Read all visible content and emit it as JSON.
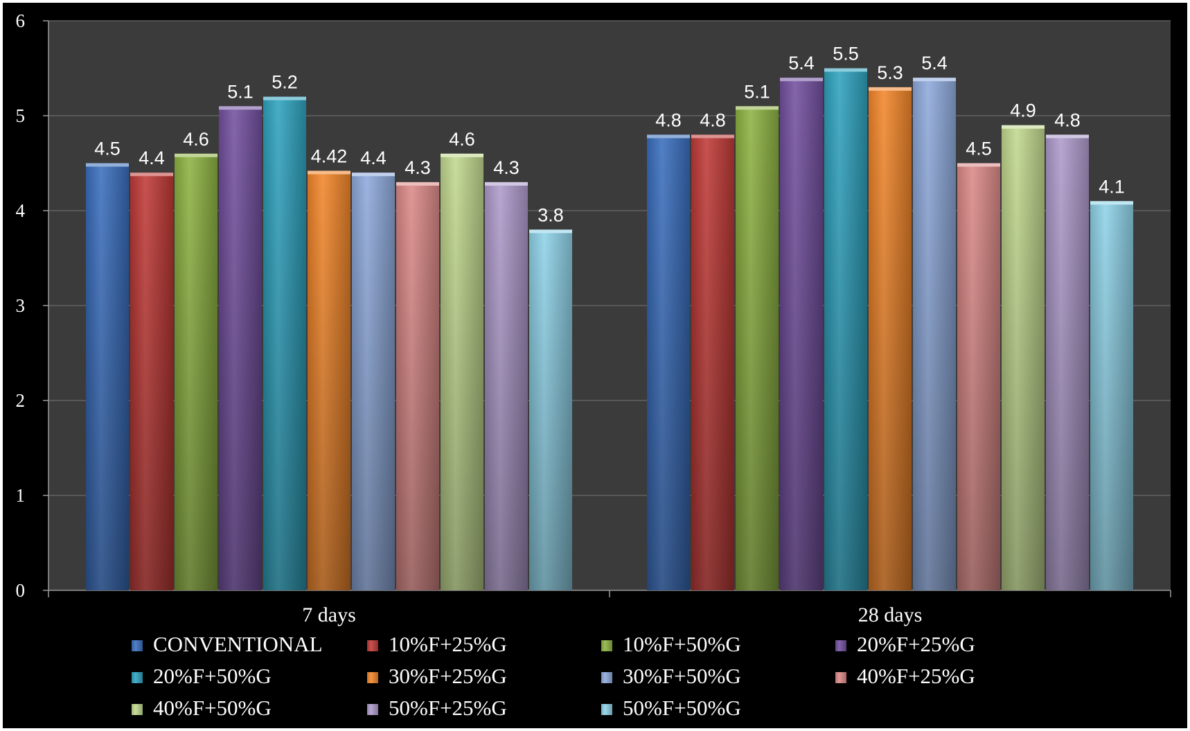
{
  "chart_data": {
    "type": "bar",
    "categories": [
      "7 days",
      "28 days"
    ],
    "ylim": [
      0,
      6
    ],
    "yticks": [
      0,
      1,
      2,
      3,
      4,
      5,
      6
    ],
    "grid": true,
    "legend_position": "bottom",
    "background": "#3b3b3b",
    "series": [
      {
        "name": "CONVENTIONAL",
        "values": [
          4.5,
          4.8
        ],
        "labels": [
          "4.5",
          "4.8"
        ],
        "color": "#3a6fbe"
      },
      {
        "name": "10%F+25%G",
        "values": [
          4.4,
          4.8
        ],
        "labels": [
          "4.4",
          "4.8"
        ],
        "color": "#c03a37"
      },
      {
        "name": "10%F+50%G",
        "values": [
          4.6,
          5.1
        ],
        "labels": [
          "4.6",
          "5.1"
        ],
        "color": "#8db342"
      },
      {
        "name": "20%F+25%G",
        "values": [
          5.1,
          5.4
        ],
        "labels": [
          "5.1",
          "5.4"
        ],
        "color": "#7350a0"
      },
      {
        "name": "20%F+50%G",
        "values": [
          5.2,
          5.5
        ],
        "labels": [
          "5.2",
          "5.5"
        ],
        "color": "#2fa3bf"
      },
      {
        "name": "30%F+25%G",
        "values": [
          4.42,
          5.3
        ],
        "labels": [
          "4.42",
          "5.3"
        ],
        "color": "#f2862a"
      },
      {
        "name": "30%F+50%G",
        "values": [
          4.4,
          5.4
        ],
        "labels": [
          "4.4",
          "5.4"
        ],
        "color": "#8eaadc"
      },
      {
        "name": "40%F+25%G",
        "values": [
          4.3,
          4.5
        ],
        "labels": [
          "4.3",
          "4.5"
        ],
        "color": "#dc8a88"
      },
      {
        "name": "40%F+50%G",
        "values": [
          4.6,
          4.9
        ],
        "labels": [
          "4.6",
          "4.9"
        ],
        "color": "#c2d98e"
      },
      {
        "name": "50%F+25%G",
        "values": [
          4.3,
          4.8
        ],
        "labels": [
          "4.3",
          "4.8"
        ],
        "color": "#ae9bcc"
      },
      {
        "name": "50%F+50%G",
        "values": [
          3.8,
          4.1
        ],
        "labels": [
          "3.8",
          "4.1"
        ],
        "color": "#8ed3e8"
      }
    ]
  }
}
